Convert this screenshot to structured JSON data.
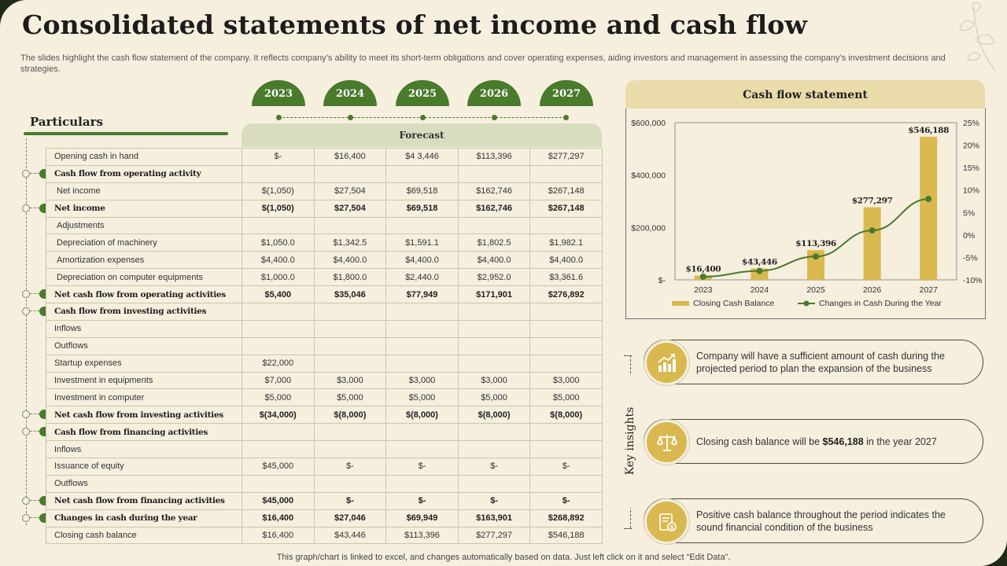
{
  "title": "Consolidated statements of net income and cash flow",
  "subtitle": "The slides highlight the cash flow statement of the company. It reflects company’s ability to meet its short-term obligations and cover operating expenses, aiding investors and management in assessing the company’s investment decisions and strategies.",
  "footer": "This graph/chart is linked to excel, and changes automatically based on data.  Just left click on it and select “Edit Data”.",
  "colors": {
    "green": "#4a7a2c",
    "gold": "#d9b84f",
    "background": "#f6efde"
  },
  "years": [
    "2023",
    "2024",
    "2025",
    "2026",
    "2027"
  ],
  "table": {
    "particulars_label": "Particulars",
    "forecast_label": "Forecast",
    "rows": [
      {
        "label": "Opening cash in hand",
        "values": [
          "$-",
          "$16,400",
          "$4 3,446",
          "$113,396",
          "$277,297"
        ],
        "style": "normal"
      },
      {
        "label": "Cash flow from operating activity",
        "values": [
          "",
          "",
          "",
          "",
          ""
        ],
        "style": "section"
      },
      {
        "label": "Net income",
        "values": [
          "$(1,050)",
          "$27,504",
          "$69,518",
          "$162,746",
          "$267,148"
        ],
        "style": "indent"
      },
      {
        "label": "Net income",
        "values": [
          "$(1,050)",
          "$27,504",
          "$69,518",
          "$162,746",
          "$267,148"
        ],
        "style": "bold"
      },
      {
        "label": "Adjustments",
        "values": [
          "",
          "",
          "",
          "",
          ""
        ],
        "style": "indent"
      },
      {
        "label": "Depreciation of machinery",
        "values": [
          "$1,050.0",
          "$1,342.5",
          "$1,591.1",
          "$1,802.5",
          "$1,982.1"
        ],
        "style": "indent"
      },
      {
        "label": "Amortization expenses",
        "values": [
          "$4,400.0",
          "$4,400.0",
          "$4,400.0",
          "$4,400.0",
          "$4,400.0"
        ],
        "style": "indent"
      },
      {
        "label": "Depreciation on computer equipments",
        "values": [
          "$1,000.0",
          "$1,800.0",
          "$2,440.0",
          "$2,952.0",
          "$3,361.6"
        ],
        "style": "indent"
      },
      {
        "label": "Net cash flow from operating activities",
        "values": [
          "$5,400",
          "$35,046",
          "$77,949",
          "$171,901",
          "$276,892"
        ],
        "style": "bold"
      },
      {
        "label": "Cash flow from investing activities",
        "values": [
          "",
          "",
          "",
          "",
          ""
        ],
        "style": "section"
      },
      {
        "label": "Inflows",
        "values": [
          "",
          "",
          "",
          "",
          ""
        ],
        "style": "normal"
      },
      {
        "label": "Outflows",
        "values": [
          "",
          "",
          "",
          "",
          ""
        ],
        "style": "normal"
      },
      {
        "label": "Startup expenses",
        "values": [
          "$22,000",
          "",
          "",
          "",
          ""
        ],
        "style": "normal"
      },
      {
        "label": "Investment in equipments",
        "values": [
          "$7,000",
          "$3,000",
          "$3,000",
          "$3,000",
          "$3,000"
        ],
        "style": "normal"
      },
      {
        "label": "Investment in computer",
        "values": [
          "$5,000",
          "$5,000",
          "$5,000",
          "$5,000",
          "$5,000"
        ],
        "style": "normal"
      },
      {
        "label": "Net cash flow from investing activities",
        "values": [
          "$(34,000)",
          "$(8,000)",
          "$(8,000)",
          "$(8,000)",
          "$(8,000)"
        ],
        "style": "bold"
      },
      {
        "label": "Cash flow from financing activities",
        "values": [
          "",
          "",
          "",
          "",
          ""
        ],
        "style": "section"
      },
      {
        "label": "Inflows",
        "values": [
          "",
          "",
          "",
          "",
          ""
        ],
        "style": "normal"
      },
      {
        "label": "Issuance of equity",
        "values": [
          "$45,000",
          "$-",
          "$-",
          "$-",
          "$-"
        ],
        "style": "normal"
      },
      {
        "label": "Outflows",
        "values": [
          "",
          "",
          "",
          "",
          ""
        ],
        "style": "normal"
      },
      {
        "label": "Net cash flow from financing activities",
        "values": [
          "$45,000",
          "$-",
          "$-",
          "$-",
          "$-"
        ],
        "style": "bold"
      },
      {
        "label": "Changes in cash during the year",
        "values": [
          "$16,400",
          "$27,046",
          "$69,949",
          "$163,901",
          "$268,892"
        ],
        "style": "bold"
      },
      {
        "label": "Closing cash balance",
        "values": [
          "$16,400",
          "$43,446",
          "$113,396",
          "$277,297",
          "$546,188"
        ],
        "style": "normal"
      }
    ]
  },
  "chart_panel_title": "Cash flow statement",
  "chart_data": {
    "type": "bar",
    "title": "Cash flow statement",
    "categories": [
      "2023",
      "2024",
      "2025",
      "2026",
      "2027"
    ],
    "series": [
      {
        "name": "Closing Cash Balance",
        "type": "bar",
        "axis": "left",
        "values": [
          16400,
          43446,
          113396,
          277297,
          546188
        ],
        "labels": [
          "$16,400",
          "$43,446",
          "$113,396",
          "$277,297",
          "$546,188"
        ],
        "color": "#d9b84f"
      },
      {
        "name": "Changes in Cash During the Year",
        "type": "line",
        "axis": "right",
        "values": [
          -9.3,
          -8.0,
          -4.8,
          1.0,
          8.0
        ],
        "color": "#4a7a2c"
      }
    ],
    "left_axis": {
      "ylim": [
        0,
        600000
      ],
      "ticks": [
        0,
        200000,
        400000,
        600000
      ],
      "tick_labels": [
        "$-",
        "$200,000",
        "$400,000",
        "$600,000"
      ]
    },
    "right_axis": {
      "ylim": [
        -10,
        25
      ],
      "ticks": [
        -10,
        -5,
        0,
        5,
        10,
        15,
        20,
        25
      ],
      "tick_labels": [
        "-10%",
        "-5%",
        "0%",
        "5%",
        "10%",
        "15%",
        "20%",
        "25%"
      ]
    },
    "legend_position": "bottom",
    "grid": false
  },
  "insights": {
    "heading": "Key insights",
    "items": [
      {
        "icon": "growth-chart-icon",
        "text": "Company will have a sufficient amount of cash during the projected period to plan the expansion of the business"
      },
      {
        "icon": "balance-scale-icon",
        "text_before": "Closing cash balance will be ",
        "highlight": "$546,188",
        "text_after": " in the year 2027"
      },
      {
        "icon": "financial-report-icon",
        "text": "Positive cash balance throughout the period indicates the sound financial condition of the business"
      }
    ]
  }
}
